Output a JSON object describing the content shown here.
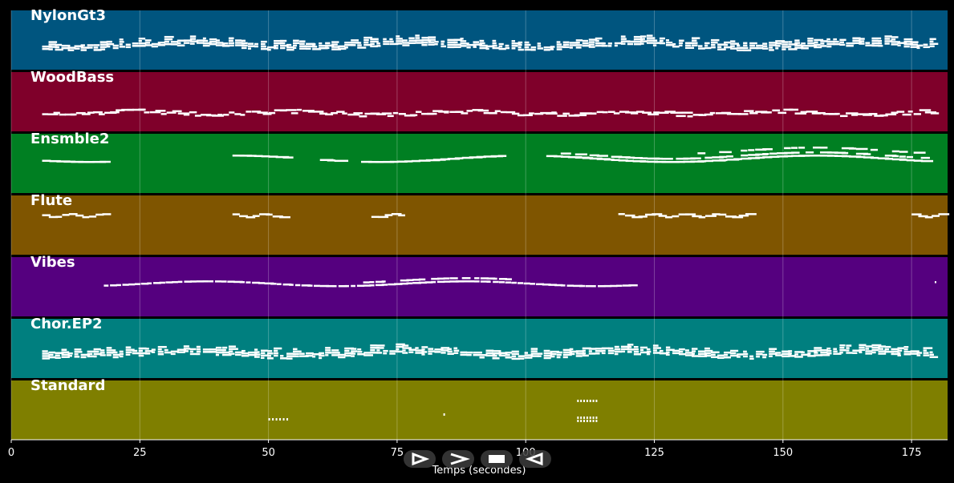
{
  "player": {
    "xlabel": "Temps (secondes)",
    "x_ticks": [
      0,
      25,
      50,
      75,
      100,
      125,
      150,
      175
    ],
    "x_range": [
      0,
      182
    ],
    "tracks": [
      {
        "name": "NylonGt3",
        "color": "#00557f",
        "style": "dense-chords"
      },
      {
        "name": "WoodBass",
        "color": "#7f002a",
        "style": "line"
      },
      {
        "name": "Ensmble2",
        "color": "#007f22",
        "style": "sections"
      },
      {
        "name": "Flute",
        "color": "#7f5500",
        "style": "sparse"
      },
      {
        "name": "Vibes",
        "color": "#55007f",
        "style": "mid"
      },
      {
        "name": "Chor.EP2",
        "color": "#007f7f",
        "style": "dense-chords"
      },
      {
        "name": "Standard",
        "color": "#7f7f00",
        "style": "drums"
      }
    ],
    "buttons": [
      {
        "name": "play-icon"
      },
      {
        "name": "next-icon"
      },
      {
        "name": "stop-icon"
      },
      {
        "name": "prev-icon"
      }
    ]
  }
}
